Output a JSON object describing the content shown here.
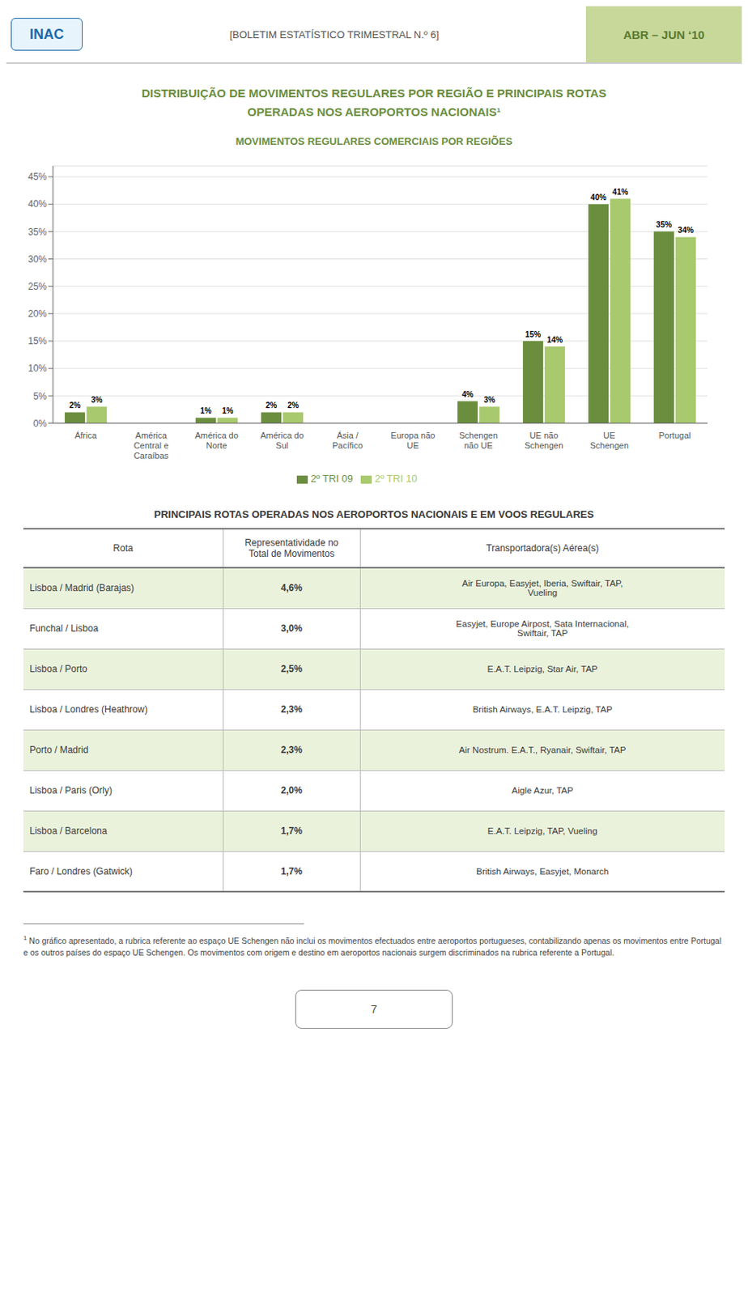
{
  "header": {
    "logo": "INAC",
    "center": "[BOLETIM ESTATÍSTICO TRIMESTRAL N.º 6]",
    "right": "ABR – JUN ‘10"
  },
  "page_title": [
    "DISTRIBUIÇÃO DE MOVIMENTOS REGULARES POR REGIÃO E PRINCIPAIS ROTAS",
    "OPERADAS NOS AEROPORTOS NACIONAIS¹"
  ],
  "chart_data": {
    "type": "bar",
    "title": "MOVIMENTOS REGULARES COMERCIAIS POR REGIÕES",
    "categories": [
      "África",
      "América\nCentral e\nCaraíbas",
      "América do\nNorte",
      "América do\nSul",
      "Ásia /\nPacífico",
      "Europa não\nUE",
      "Schengen\nnão UE",
      "UE não\nSchengen",
      "UE\nSchengen",
      "Portugal"
    ],
    "series": [
      {
        "name": "2º TRI 09",
        "color": "#6b8e3e",
        "values": [
          2,
          0,
          1,
          2,
          0,
          0,
          4,
          15,
          40,
          35
        ],
        "value_labels": [
          "2%",
          null,
          "1%",
          "2%",
          null,
          null,
          "4%",
          "15%",
          "40%",
          "35%"
        ]
      },
      {
        "name": "2º TRI 10",
        "color": "#a8c96e",
        "values": [
          3,
          0,
          1,
          2,
          0,
          0,
          3,
          14,
          41,
          34
        ],
        "value_labels": [
          "3%",
          null,
          "1%",
          "2%",
          null,
          null,
          "3%",
          "14%",
          "41%",
          "34%"
        ]
      }
    ],
    "ylim": [
      0,
      47
    ],
    "yticks": [
      {
        "value": 0,
        "label": "0%"
      },
      {
        "value": 5,
        "label": "5%"
      },
      {
        "value": 10,
        "label": "10%"
      },
      {
        "value": 15,
        "label": "15%"
      },
      {
        "value": 20,
        "label": "20%"
      },
      {
        "value": 25,
        "label": "25%"
      },
      {
        "value": 30,
        "label": "30%"
      },
      {
        "value": 35,
        "label": "35%"
      },
      {
        "value": 40,
        "label": "40%"
      },
      {
        "value": 45,
        "label": "45%"
      }
    ],
    "grid": true,
    "data_labels": true,
    "legend": "bottom"
  },
  "table": {
    "title": "PRINCIPAIS ROTAS OPERADAS NOS AEROPORTOS NACIONAIS E EM VOOS REGULARES",
    "header": [
      "Rota",
      "Representatividade no\nTotal de Movimentos",
      "Transportadora(s) Aérea(s)"
    ],
    "rows": [
      [
        "Lisboa / Madrid (Barajas)",
        "4,6%",
        "Air Europa, Easyjet, Iberia, Swiftair, TAP,\nVueling"
      ],
      [
        "Funchal / Lisboa",
        "3,0%",
        "Easyjet, Europe Airpost, Sata Internacional,\nSwiftair, TAP"
      ],
      [
        "Lisboa / Porto",
        "2,5%",
        "E.A.T. Leipzig, Star Air, TAP"
      ],
      [
        "Lisboa / Londres (Heathrow)",
        "2,3%",
        "British Airways, E.A.T. Leipzig, TAP"
      ],
      [
        "Porto / Madrid",
        "2,3%",
        "Air Nostrum. E.A.T., Ryanair, Swiftair, TAP"
      ],
      [
        "Lisboa / Paris (Orly)",
        "2,0%",
        "Aigle Azur, TAP"
      ],
      [
        "Lisboa / Barcelona",
        "1,7%",
        "E.A.T. Leipzig, TAP, Vueling"
      ],
      [
        "Faro / Londres (Gatwick)",
        "1,7%",
        "British Airways, Easyjet, Monarch"
      ]
    ]
  },
  "footnote": {
    "mark": "1",
    "text": " No gráfico apresentado, a rubrica referente ao espaço UE Schengen não inclui os movimentos efectuados entre aeroportos portugueses, contabilizando apenas os movimentos entre Portugal e os outros países do espaço UE Schengen. Os movimentos com origem e destino em aeroportos nacionais surgem discriminados na rubrica referente a Portugal."
  },
  "page_number": "7"
}
